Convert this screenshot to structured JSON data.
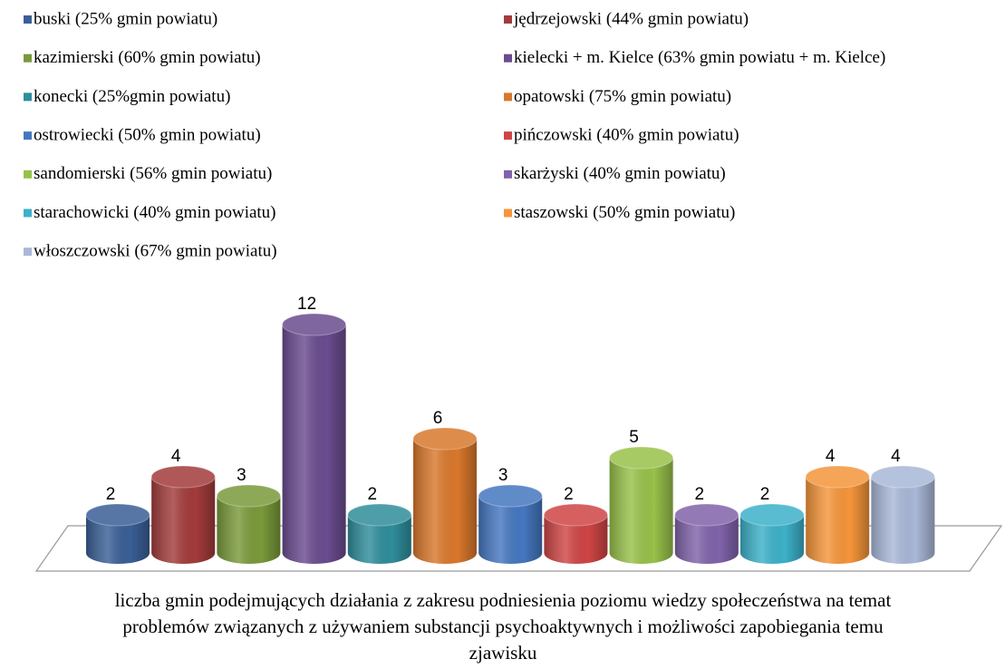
{
  "chart_data": {
    "type": "bar3d",
    "x_label": "liczba gmin podejmujących działania z zakresu podniesienia poziomu wiedzy społeczeństwa na temat problemów związanych z używaniem substancji psychoaktywnych i możliwości zapobiegania temu zjawisku",
    "series": [
      {
        "name": "buski (25% gmin powiatu)",
        "color": "#3a5f96",
        "values": [
          2
        ]
      },
      {
        "name": "jędrzejowski (44% gmin powiatu)",
        "color": "#a33b3b",
        "values": [
          4
        ]
      },
      {
        "name": "kazimierski (60% gmin powiatu)",
        "color": "#7a9a3a",
        "values": [
          3
        ]
      },
      {
        "name": "kielecki + m. Kielce (63% gmin powiatu + m. Kielce)",
        "color": "#6a4c8f",
        "values": [
          12
        ]
      },
      {
        "name": "konecki (25%gmin powiatu)",
        "color": "#2f8d9c",
        "values": [
          2
        ]
      },
      {
        "name": "opatowski (75% gmin powiatu)",
        "color": "#d9782c",
        "values": [
          6
        ]
      },
      {
        "name": "ostrowiecki (50% gmin powiatu)",
        "color": "#4577c0",
        "values": [
          3
        ]
      },
      {
        "name": "pińczowski (40% gmin powiatu)",
        "color": "#cf4545",
        "values": [
          2
        ]
      },
      {
        "name": "sandomierski (56% gmin powiatu)",
        "color": "#98c14a",
        "values": [
          5
        ]
      },
      {
        "name": "skarżyski (40% gmin powiatu)",
        "color": "#8063aa",
        "values": [
          2
        ]
      },
      {
        "name": "starachowicki (40% gmin powiatu)",
        "color": "#3cb1c9",
        "values": [
          2
        ]
      },
      {
        "name": "staszowski (50% gmin powiatu)",
        "color": "#f5953a",
        "values": [
          4
        ]
      },
      {
        "name": "włoszczowski (67% gmin powiatu)",
        "color": "#a9b8d8",
        "values": [
          4
        ]
      }
    ],
    "legend": "top"
  }
}
